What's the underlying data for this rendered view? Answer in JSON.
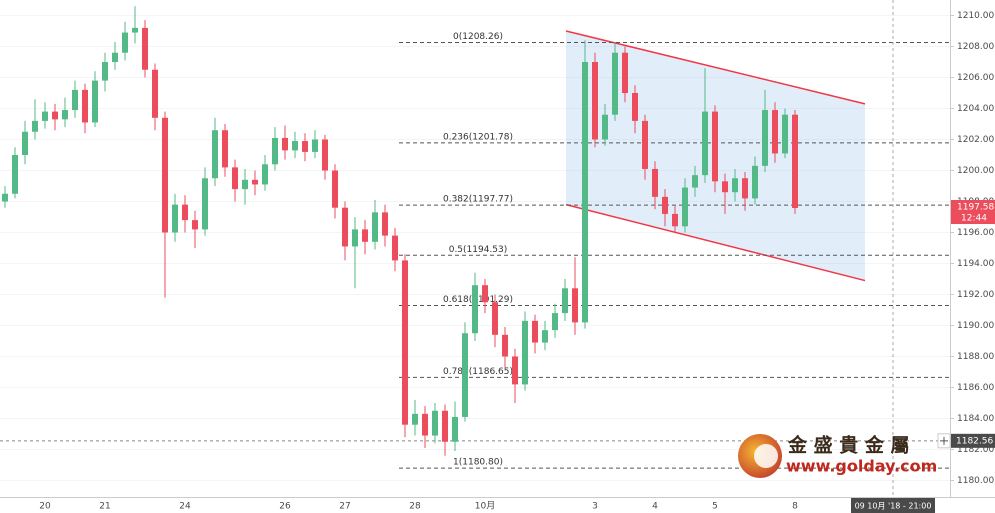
{
  "chart_data": {
    "type": "candlestick",
    "categories": [
      null,
      null,
      null,
      null,
      "20",
      null,
      null,
      null,
      null,
      null,
      "21",
      null,
      null,
      null,
      null,
      null,
      null,
      null,
      "24",
      null,
      null,
      null,
      null,
      null,
      null,
      null,
      null,
      null,
      "26",
      null,
      null,
      null,
      null,
      null,
      "27",
      null,
      null,
      null,
      null,
      null,
      null,
      "28",
      null,
      null,
      null,
      null,
      null,
      null,
      "10月",
      null,
      null,
      null,
      null,
      null,
      null,
      null,
      null,
      null,
      null,
      "3",
      null,
      null,
      null,
      null,
      null,
      "4",
      null,
      null,
      null,
      null,
      null,
      "5",
      null,
      null,
      null,
      null,
      null,
      null,
      null,
      "8"
    ],
    "open": [
      1198.0,
      1198.5,
      1201,
      1202.5,
      1203.2,
      1203.8,
      1203.3,
      1203.9,
      1205.2,
      1203.1,
      1205.8,
      1207.0,
      1207.6,
      1208.9,
      1209.2,
      1206.5,
      1203.4,
      1196.0,
      1197.8,
      1196.8,
      1196.2,
      1199.5,
      1202.6,
      1200.2,
      1198.8,
      1199.4,
      1199.1,
      1200.4,
      1202.1,
      1201.3,
      1201.9,
      1201.2,
      1202.0,
      1200.0,
      1197.6,
      1195.1,
      1196.2,
      1195.4,
      1197.3,
      1195.8,
      1194.2,
      1183.6,
      1184.3,
      1182.9,
      1184.5,
      1182.5,
      1184.1,
      1189.5,
      1192.6,
      1191.5,
      1189.4,
      1188.0,
      1186.2,
      1190.3,
      1188.9,
      1189.7,
      1190.8,
      1192.4,
      1190.2,
      1207.0,
      1202.0,
      1203.6,
      1207.6,
      1205.0,
      1203.2,
      1200.1,
      1198.3,
      1197.2,
      1196.4,
      1198.9,
      1199.7,
      1203.8,
      1199.3,
      1198.6,
      1199.5,
      1198.2,
      1200.3,
      1203.9,
      1201.1,
      1203.6
    ],
    "high": [
      1199.0,
      1201.5,
      1203.2,
      1204.6,
      1204.4,
      1204.3,
      1204.7,
      1205.8,
      1205.6,
      1206.4,
      1207.6,
      1208.3,
      1209.6,
      1210.6,
      1209.7,
      1206.9,
      1203.8,
      1198.5,
      1198.4,
      1197.4,
      1200.2,
      1203.4,
      1203.0,
      1200.7,
      1200.1,
      1200.0,
      1201.0,
      1202.8,
      1202.9,
      1202.5,
      1202.4,
      1202.6,
      1202.3,
      1200.4,
      1198.0,
      1197.0,
      1196.8,
      1198.1,
      1197.8,
      1196.3,
      1194.6,
      1185.2,
      1184.8,
      1185.0,
      1184.9,
      1185.1,
      1190.2,
      1193.4,
      1193.0,
      1192.0,
      1189.9,
      1188.5,
      1190.9,
      1190.7,
      1190.3,
      1191.4,
      1193.0,
      1194.4,
      1208.4,
      1207.6,
      1204.3,
      1208.2,
      1208.0,
      1205.5,
      1203.6,
      1200.6,
      1198.8,
      1197.7,
      1199.5,
      1200.3,
      1206.6,
      1204.2,
      1199.8,
      1200.1,
      1199.9,
      1200.9,
      1205.2,
      1204.4,
      1204.0,
      1203.9
    ],
    "low": [
      1197.6,
      1198.2,
      1200.4,
      1202.0,
      1202.7,
      1202.6,
      1202.8,
      1203.4,
      1202.4,
      1202.8,
      1205.1,
      1206.5,
      1207.1,
      1208.2,
      1206.0,
      1202.6,
      1191.8,
      1195.4,
      1196.0,
      1195.0,
      1195.8,
      1199.0,
      1199.6,
      1198.0,
      1197.8,
      1198.4,
      1198.7,
      1200.0,
      1200.7,
      1200.8,
      1200.6,
      1200.8,
      1199.4,
      1196.9,
      1194.2,
      1192.4,
      1194.6,
      1194.9,
      1195.1,
      1193.5,
      1182.8,
      1182.9,
      1182.1,
      1182.4,
      1181.6,
      1181.9,
      1183.8,
      1189.0,
      1190.8,
      1188.6,
      1187.3,
      1185.0,
      1185.8,
      1188.2,
      1188.4,
      1189.2,
      1190.3,
      1189.4,
      1189.8,
      1201.5,
      1201.6,
      1203.2,
      1204.4,
      1202.4,
      1199.4,
      1197.5,
      1196.4,
      1196.0,
      1196.0,
      1198.3,
      1199.2,
      1198.6,
      1197.2,
      1198.0,
      1197.4,
      1197.8,
      1199.9,
      1200.5,
      1200.8,
      1197.2
    ],
    "close": [
      1198.5,
      1201,
      1202.5,
      1203.2,
      1203.8,
      1203.3,
      1203.9,
      1205.2,
      1203.1,
      1205.8,
      1207.0,
      1207.6,
      1208.9,
      1209.2,
      1206.5,
      1203.4,
      1196.0,
      1197.8,
      1196.8,
      1196.2,
      1199.5,
      1202.6,
      1200.2,
      1198.8,
      1199.4,
      1199.1,
      1200.4,
      1202.1,
      1201.3,
      1201.9,
      1201.2,
      1202.0,
      1200.0,
      1197.6,
      1195.1,
      1196.2,
      1195.4,
      1197.3,
      1195.8,
      1194.2,
      1183.6,
      1184.3,
      1182.9,
      1184.5,
      1182.5,
      1184.1,
      1189.5,
      1192.6,
      1191.5,
      1189.4,
      1188.0,
      1186.2,
      1190.3,
      1188.9,
      1189.7,
      1190.8,
      1192.4,
      1190.2,
      1207.0,
      1202.0,
      1203.6,
      1207.6,
      1205.0,
      1203.2,
      1200.1,
      1198.3,
      1197.2,
      1196.4,
      1198.9,
      1199.7,
      1203.8,
      1199.3,
      1198.6,
      1199.5,
      1198.2,
      1200.3,
      1203.9,
      1201.1,
      1203.6,
      1197.58
    ],
    "up_color": "#53b987",
    "down_color": "#eb4d5c",
    "ylim": [
      1179,
      1211
    ],
    "yticks": [
      {
        "value": 1180,
        "label": "1180.00"
      },
      {
        "value": 1182,
        "label": "1182.00"
      },
      {
        "value": 1184,
        "label": "1184.00"
      },
      {
        "value": 1186,
        "label": "1186.00"
      },
      {
        "value": 1188,
        "label": "1188.00"
      },
      {
        "value": 1190,
        "label": "1190.00"
      },
      {
        "value": 1192,
        "label": "1192.00"
      },
      {
        "value": 1194,
        "label": "1194.00"
      },
      {
        "value": 1196,
        "label": "1196.00"
      },
      {
        "value": 1198,
        "label": "1198.00"
      },
      {
        "value": 1200,
        "label": "1200.00"
      },
      {
        "value": 1202,
        "label": "1202.00"
      },
      {
        "value": 1204,
        "label": "1204.00"
      },
      {
        "value": 1206,
        "label": "1206.00"
      },
      {
        "value": 1208,
        "label": "1208.00"
      },
      {
        "value": 1210,
        "label": "1210.00"
      }
    ],
    "fib_levels": [
      {
        "label": "0(1208.26)",
        "value": 1208.26
      },
      {
        "label": "0.236(1201.78)",
        "value": 1201.78
      },
      {
        "label": "0.382(1197.77)",
        "value": 1197.77
      },
      {
        "label": "0.5(1194.53)",
        "value": 1194.53
      },
      {
        "label": "0.618(1191.29)",
        "value": 1191.29
      },
      {
        "label": "0.786(1186.65)",
        "value": 1186.65
      },
      {
        "label": "1(1180.80)",
        "value": 1180.8
      }
    ],
    "channel": {
      "upper": [
        1209.0,
        1204.3
      ],
      "lower": [
        1197.8,
        1192.9
      ],
      "color": "#f23645"
    },
    "last_price_time": "12:44",
    "crosshair": {
      "value": 1182.56,
      "time_label": "09 10月 '18 - 21:00"
    }
  },
  "watermark": {
    "name": "金 盛 貴 金 屬",
    "url": "www.golday.com"
  }
}
